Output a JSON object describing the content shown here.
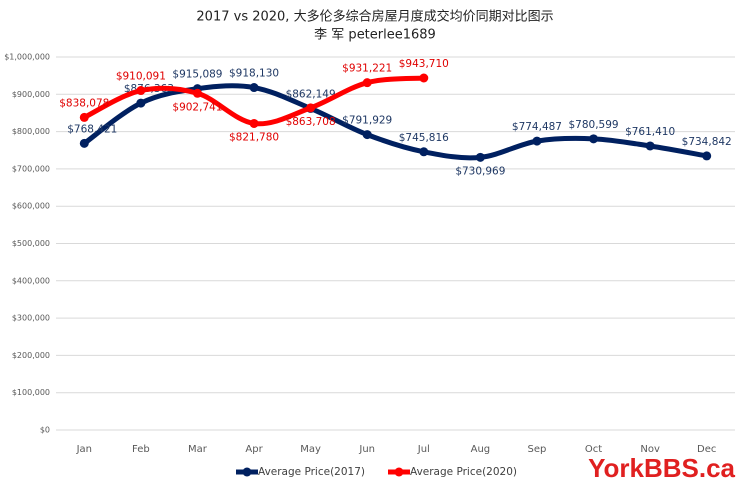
{
  "chart_data": {
    "type": "line",
    "title": "2017 vs 2020, 大多伦多综合房屋月度成交均价同期对比图示",
    "subtitle": "李 军  peterlee1689",
    "watermark": "YorkBBS.ca",
    "categories": [
      "Jan",
      "Feb",
      "Mar",
      "Apr",
      "May",
      "Jun",
      "Jul",
      "Aug",
      "Sep",
      "Oct",
      "Nov",
      "Dec"
    ],
    "series": [
      {
        "name": "Average Price(2017)",
        "color": "#002060",
        "values": [
          768421,
          876363,
          915089,
          918130,
          862149,
          791929,
          745816,
          730969,
          774487,
          780599,
          761410,
          734842
        ],
        "value_labels": [
          "$768,421",
          "$876,363",
          "$915,089",
          "$918,130",
          "$862,149",
          "$791,929",
          "$745,816",
          "$730,969",
          "$774,487",
          "$780,599",
          "$761,410",
          "$734,842"
        ]
      },
      {
        "name": "Average Price(2020)",
        "color": "#ff0000",
        "values": [
          838078,
          910091,
          902741,
          821780,
          863708,
          931221,
          943710,
          null,
          null,
          null,
          null,
          null
        ],
        "value_labels": [
          "$838,078",
          "$910,091",
          "$902,741",
          "$821,780",
          "$863,708",
          "$931,221",
          "$943,710",
          null,
          null,
          null,
          null,
          null
        ]
      }
    ],
    "ylim": [
      0,
      1000000
    ],
    "yticks": [
      {
        "value": 0,
        "label": "$0"
      },
      {
        "value": 100000,
        "label": "$100,000"
      },
      {
        "value": 200000,
        "label": "$200,000"
      },
      {
        "value": 300000,
        "label": "$300,000"
      },
      {
        "value": 400000,
        "label": "$400,000"
      },
      {
        "value": 500000,
        "label": "$500,000"
      },
      {
        "value": 600000,
        "label": "$600,000"
      },
      {
        "value": 700000,
        "label": "$700,000"
      },
      {
        "value": 800000,
        "label": "$800,000"
      },
      {
        "value": 900000,
        "label": "$900,000"
      },
      {
        "value": 1000000,
        "label": "$1,000,000"
      }
    ],
    "grid": true,
    "legend": "bottom"
  }
}
